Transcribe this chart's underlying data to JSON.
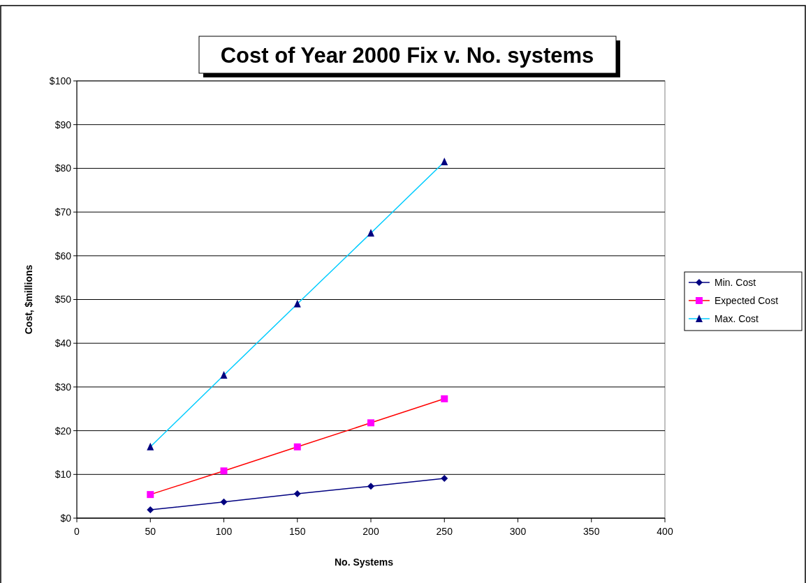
{
  "chart_data": {
    "type": "line",
    "title": "Cost of Year 2000 Fix v. No. systems",
    "xlabel": "No. Systems",
    "ylabel": "Cost, $millions",
    "x": [
      50,
      100,
      150,
      200,
      250
    ],
    "xlim": [
      0,
      400
    ],
    "xticks": [
      0,
      50,
      100,
      150,
      200,
      250,
      300,
      350,
      400
    ],
    "ylim": [
      0,
      100
    ],
    "yticks": [
      {
        "value": 0,
        "label": "$0"
      },
      {
        "value": 10,
        "label": "$10"
      },
      {
        "value": 20,
        "label": "$20"
      },
      {
        "value": 30,
        "label": "$30"
      },
      {
        "value": 40,
        "label": "$40"
      },
      {
        "value": 50,
        "label": "$50"
      },
      {
        "value": 60,
        "label": "$60"
      },
      {
        "value": 70,
        "label": "$70"
      },
      {
        "value": 80,
        "label": "$80"
      },
      {
        "value": 90,
        "label": "$90"
      },
      {
        "value": 100,
        "label": "$100"
      }
    ],
    "grid": "y",
    "legend": "right",
    "line_style": "solid",
    "series": [
      {
        "name": "Min. Cost",
        "color": "#000080",
        "marker": "diamond",
        "colors": [
          "#000080",
          "#000080",
          "#000080",
          "#000080",
          "#000080"
        ],
        "values": [
          1.9,
          3.7,
          5.6,
          7.3,
          9.1
        ]
      },
      {
        "name": "Expected  Cost",
        "color": "#ff0000",
        "marker": "square",
        "colors": [
          "#ff00ff",
          "#ff00ff",
          "#ff00ff",
          "#ff00ff",
          "#ff00ff"
        ],
        "values": [
          5.4,
          10.8,
          16.3,
          21.8,
          27.3
        ]
      },
      {
        "name": "Max. Cost",
        "color": "#00ccff",
        "marker": "triangle",
        "colors": [
          "#000080",
          "#000080",
          "#000080",
          "#000080",
          "#000080"
        ],
        "values": [
          16.3,
          32.7,
          49.0,
          65.2,
          81.5
        ]
      }
    ]
  }
}
